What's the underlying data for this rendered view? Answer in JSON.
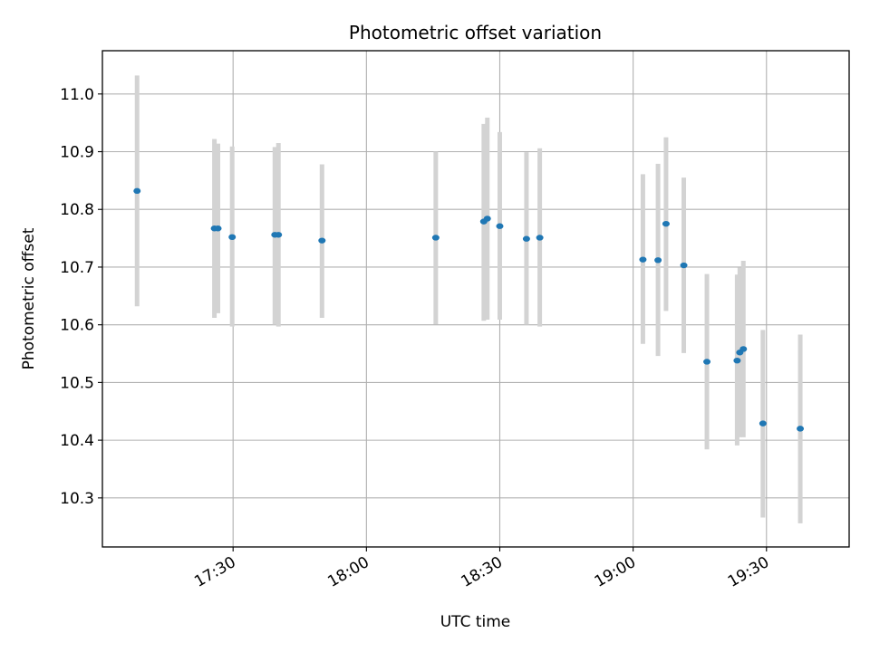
{
  "chart_data": {
    "type": "scatter",
    "title": "Photometric offset variation",
    "xlabel": "UTC time",
    "ylabel": "Photometric offset",
    "x_ticks": [
      "17:30",
      "18:00",
      "18:30",
      "19:00",
      "19:30"
    ],
    "y_ticks": [
      "10.3",
      "10.4",
      "10.5",
      "10.6",
      "10.7",
      "10.8",
      "10.9",
      "11.0"
    ],
    "xlim": [
      "17:00:36",
      "19:48:36"
    ],
    "ylim": [
      10.215,
      11.075
    ],
    "grid": true,
    "marker_color": "#1f77b4",
    "errorbar_color": "#d3d3d3",
    "points": [
      {
        "x": "17:08:24",
        "y": 10.832,
        "ylo": 10.632,
        "yhi": 11.032
      },
      {
        "x": "17:25:48",
        "y": 10.767,
        "ylo": 10.612,
        "yhi": 10.922
      },
      {
        "x": "17:26:36",
        "y": 10.767,
        "ylo": 10.62,
        "yhi": 10.914
      },
      {
        "x": "17:29:48",
        "y": 10.752,
        "ylo": 10.597,
        "yhi": 10.909
      },
      {
        "x": "17:39:24",
        "y": 10.756,
        "ylo": 10.6,
        "yhi": 10.908
      },
      {
        "x": "17:40:12",
        "y": 10.756,
        "ylo": 10.597,
        "yhi": 10.915
      },
      {
        "x": "17:50:00",
        "y": 10.746,
        "ylo": 10.612,
        "yhi": 10.878
      },
      {
        "x": "18:15:36",
        "y": 10.751,
        "ylo": 10.601,
        "yhi": 10.9
      },
      {
        "x": "18:26:24",
        "y": 10.779,
        "ylo": 10.607,
        "yhi": 10.948
      },
      {
        "x": "18:27:12",
        "y": 10.784,
        "ylo": 10.609,
        "yhi": 10.959
      },
      {
        "x": "18:30:00",
        "y": 10.771,
        "ylo": 10.609,
        "yhi": 10.934
      },
      {
        "x": "18:36:00",
        "y": 10.749,
        "ylo": 10.6,
        "yhi": 10.899
      },
      {
        "x": "18:39:00",
        "y": 10.751,
        "ylo": 10.597,
        "yhi": 10.906
      },
      {
        "x": "19:02:12",
        "y": 10.713,
        "ylo": 10.567,
        "yhi": 10.861
      },
      {
        "x": "19:05:36",
        "y": 10.712,
        "ylo": 10.546,
        "yhi": 10.879
      },
      {
        "x": "19:07:24",
        "y": 10.775,
        "ylo": 10.624,
        "yhi": 10.925
      },
      {
        "x": "19:11:24",
        "y": 10.703,
        "ylo": 10.551,
        "yhi": 10.855
      },
      {
        "x": "19:16:36",
        "y": 10.536,
        "ylo": 10.384,
        "yhi": 10.688
      },
      {
        "x": "19:23:24",
        "y": 10.538,
        "ylo": 10.391,
        "yhi": 10.687
      },
      {
        "x": "19:24:00",
        "y": 10.552,
        "ylo": 10.405,
        "yhi": 10.699
      },
      {
        "x": "19:24:48",
        "y": 10.558,
        "ylo": 10.405,
        "yhi": 10.711
      },
      {
        "x": "19:29:12",
        "y": 10.429,
        "ylo": 10.266,
        "yhi": 10.591
      },
      {
        "x": "19:37:36",
        "y": 10.42,
        "ylo": 10.256,
        "yhi": 10.583
      }
    ]
  }
}
